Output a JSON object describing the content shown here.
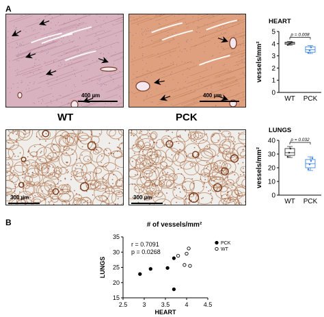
{
  "panel_a": {
    "letter": "A",
    "scale_top": "400 µm",
    "scale_bottom": "300 µm",
    "label_wt": "WT",
    "label_pck": "PCK"
  },
  "panel_b": {
    "letter": "B"
  },
  "colors": {
    "heart_wt": "#d8b3bf",
    "heart_pck": "#dea07e",
    "lung_stain": "#a25a34",
    "box_pck": "#3e87d6",
    "box_wt": "#333333"
  },
  "chart_data": [
    {
      "type": "box",
      "title": "HEART",
      "ylabel": "vessels/mm²",
      "categories": [
        "WT",
        "PCK"
      ],
      "ylim": [
        0,
        5
      ],
      "yticks": [
        0,
        1,
        2,
        3,
        4,
        5
      ],
      "annotation": "p = 0.008",
      "series": [
        {
          "category": "WT",
          "q1": 3.95,
          "median": 4.05,
          "q3": 4.12,
          "min": 3.88,
          "max": 4.18,
          "points": [
            3.9,
            4.0,
            4.05,
            4.1
          ]
        },
        {
          "category": "PCK",
          "q1": 3.3,
          "median": 3.5,
          "q3": 3.75,
          "min": 3.2,
          "max": 3.85,
          "points": [
            3.25,
            3.45,
            3.7
          ]
        }
      ]
    },
    {
      "type": "box",
      "title": "LUNGS",
      "ylabel": "vessels/mm²",
      "categories": [
        "WT",
        "PCK"
      ],
      "ylim": [
        0,
        40
      ],
      "yticks": [
        0,
        10,
        20,
        30,
        40
      ],
      "annotation": "p = 0.032",
      "series": [
        {
          "category": "WT",
          "q1": 29,
          "median": 31,
          "q3": 34,
          "min": 27.5,
          "max": 35.5,
          "points": [
            28,
            31,
            34
          ]
        },
        {
          "category": "PCK",
          "q1": 20,
          "median": 23,
          "q3": 26,
          "min": 18,
          "max": 28,
          "points": [
            19,
            22.5,
            25,
            27
          ]
        }
      ]
    },
    {
      "type": "scatter",
      "title": "# of vessels/mm²",
      "xlabel": "HEART",
      "ylabel": "LUNGS",
      "xlim": [
        2.5,
        4.5
      ],
      "ylim": [
        15,
        35
      ],
      "xticks": [
        2.5,
        3,
        3.5,
        4,
        4.5
      ],
      "yticks": [
        15,
        20,
        25,
        30,
        35
      ],
      "annotations": [
        "r = 0.7091",
        "p = 0.0268"
      ],
      "legend_position": "top-right",
      "series": [
        {
          "name": "PCK",
          "marker": "filled",
          "points": [
            [
              2.9,
              22.8
            ],
            [
              3.15,
              24.5
            ],
            [
              3.55,
              24.8
            ],
            [
              3.7,
              28.0
            ],
            [
              3.7,
              17.8
            ]
          ]
        },
        {
          "name": "WT",
          "marker": "open",
          "points": [
            [
              3.8,
              28.8
            ],
            [
              3.95,
              25.8
            ],
            [
              4.0,
              29.5
            ],
            [
              4.05,
              31.2
            ],
            [
              4.08,
              25.5
            ]
          ]
        }
      ]
    }
  ]
}
